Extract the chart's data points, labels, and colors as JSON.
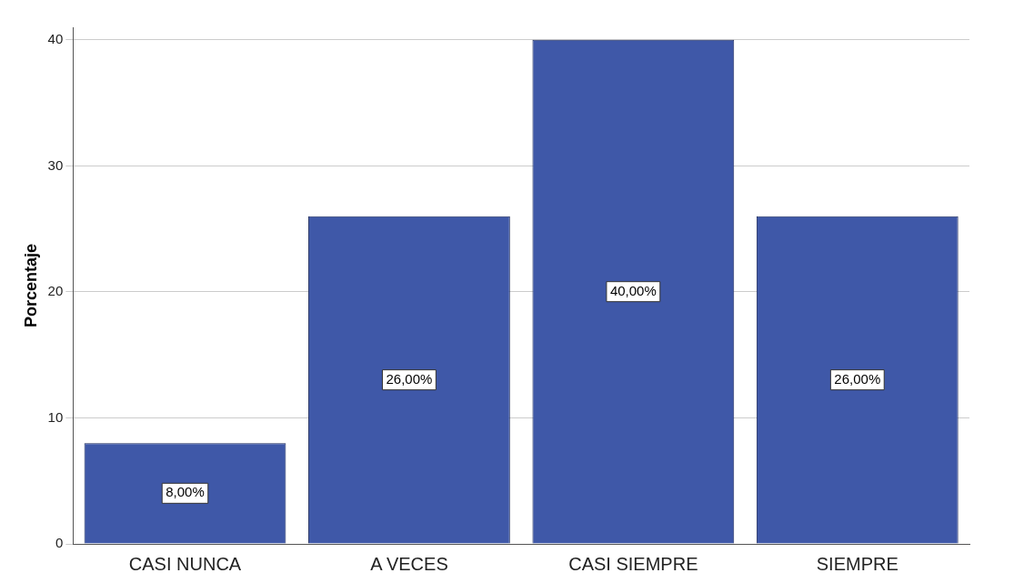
{
  "chart_data": {
    "type": "bar",
    "ylabel": "Porcentaje",
    "categories": [
      "CASI NUNCA",
      "A VECES",
      "CASI SIEMPRE",
      "SIEMPRE"
    ],
    "values": [
      8,
      26,
      40,
      26
    ],
    "color": "#3f58a8",
    "value_labels": [
      "8,00%",
      "26,00%",
      "40,00%",
      "26,00%"
    ],
    "ylim": [
      0,
      41
    ],
    "yticks": [
      0,
      10,
      20,
      30,
      40
    ],
    "grid": "y"
  }
}
